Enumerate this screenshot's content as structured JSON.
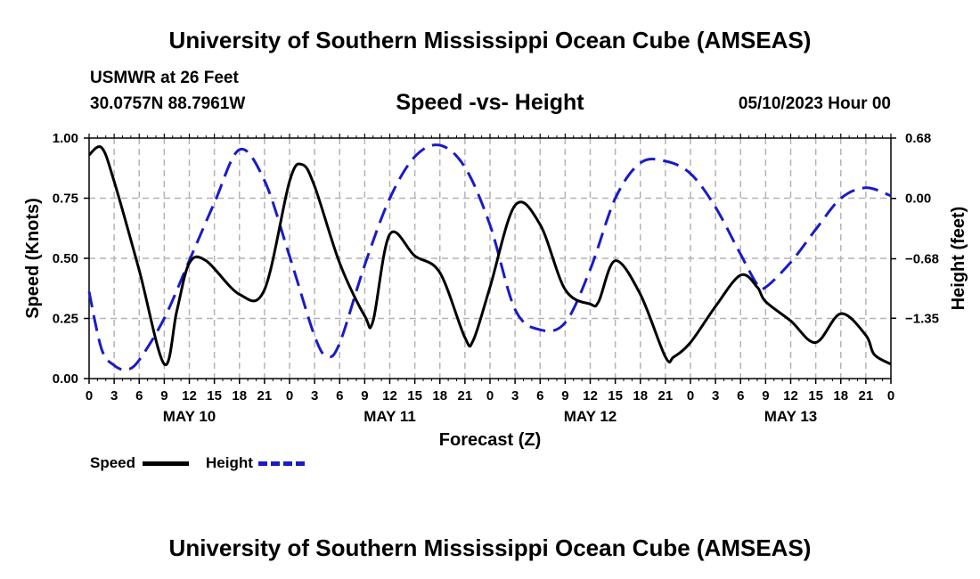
{
  "header": {
    "title": "University of Southern Mississippi Ocean Cube (AMSEAS)",
    "station": "USMWR at 26 Feet",
    "coordinates": "30.0757N  88.7961W",
    "subtitle": "Speed -vs- Height",
    "date_hour": "05/10/2023 Hour 00"
  },
  "footer": {
    "title": "University of Southern Mississippi Ocean Cube (AMSEAS)"
  },
  "legend": {
    "speed_label": "Speed",
    "height_label": "Height"
  },
  "colors": {
    "speed": "#000000",
    "height": "#1a1ac8",
    "grid": "#b4b4b4"
  },
  "chart_data": {
    "type": "line",
    "title": "Speed -vs- Height",
    "xlabel": "Forecast (Z)",
    "ylabel": "Speed (Knots)",
    "y2label": "Height (feet)",
    "x_unit": "hours from 05/10/2023 00Z",
    "xlim": [
      0,
      96
    ],
    "ylim": [
      0,
      1.0
    ],
    "y2lim": [
      -2.03,
      0.68
    ],
    "grid": true,
    "legend_position": "bottom-left",
    "x_ticks": [
      0,
      3,
      6,
      9,
      12,
      15,
      18,
      21,
      24,
      27,
      30,
      33,
      36,
      39,
      42,
      45,
      48,
      51,
      54,
      57,
      60,
      63,
      66,
      69,
      72,
      75,
      78,
      81,
      84,
      87,
      90,
      93,
      96
    ],
    "x_tick_labels": [
      "0",
      "3",
      "6",
      "9",
      "12",
      "15",
      "18",
      "21",
      "0",
      "3",
      "6",
      "9",
      "12",
      "15",
      "18",
      "21",
      "0",
      "3",
      "6",
      "9",
      "12",
      "15",
      "18",
      "21",
      "0",
      "3",
      "6",
      "9",
      "12",
      "15",
      "18",
      "21",
      "0"
    ],
    "day_labels": [
      {
        "x": 12,
        "label": "MAY 10"
      },
      {
        "x": 36,
        "label": "MAY 11"
      },
      {
        "x": 60,
        "label": "MAY 12"
      },
      {
        "x": 84,
        "label": "MAY 13"
      }
    ],
    "y_ticks": [
      0,
      0.25,
      0.5,
      0.75,
      1.0
    ],
    "y_tick_labels": [
      "0.00",
      "0.25",
      "0.50",
      "0.75",
      "1.00"
    ],
    "y2_ticks": [
      0.68,
      0.0,
      -0.68,
      -1.35
    ],
    "y2_tick_labels": [
      "0.68",
      "0.00",
      "−0.68",
      "−1.35"
    ],
    "series": [
      {
        "name": "Speed",
        "axis": "left",
        "style": "solid",
        "x": [
          0,
          1.5,
          3,
          6,
          9,
          10.5,
          12,
          14,
          18,
          21,
          24,
          25.5,
          27,
          30,
          33,
          34,
          36,
          39,
          42,
          45,
          46,
          48,
          51,
          54,
          57,
          60,
          61,
          63,
          66,
          69,
          70,
          72,
          75,
          78,
          80,
          81,
          84,
          87,
          90,
          93,
          94,
          96
        ],
        "y": [
          0.93,
          0.96,
          0.82,
          0.45,
          0.06,
          0.28,
          0.48,
          0.49,
          0.35,
          0.37,
          0.82,
          0.89,
          0.8,
          0.48,
          0.26,
          0.24,
          0.6,
          0.51,
          0.44,
          0.17,
          0.16,
          0.38,
          0.72,
          0.64,
          0.37,
          0.31,
          0.32,
          0.49,
          0.35,
          0.09,
          0.09,
          0.15,
          0.3,
          0.43,
          0.38,
          0.32,
          0.24,
          0.15,
          0.27,
          0.18,
          0.1,
          0.06
        ]
      },
      {
        "name": "Height",
        "axis": "right",
        "style": "dashed",
        "x": [
          0,
          1.5,
          3,
          4.5,
          6,
          9,
          12,
          15,
          18,
          21,
          24,
          27,
          28.5,
          30,
          33,
          36,
          39,
          42,
          45,
          48,
          51,
          54,
          57,
          60,
          63,
          66,
          69,
          72,
          75,
          78,
          80,
          81,
          84,
          87,
          90,
          93,
          96
        ],
        "y": [
          -1.05,
          -1.7,
          -1.88,
          -1.93,
          -1.82,
          -1.35,
          -0.7,
          -0.05,
          0.55,
          0.2,
          -0.65,
          -1.55,
          -1.78,
          -1.63,
          -0.75,
          0.0,
          0.47,
          0.6,
          0.35,
          -0.3,
          -1.25,
          -1.48,
          -1.4,
          -0.8,
          0.0,
          0.4,
          0.42,
          0.28,
          -0.1,
          -0.63,
          -0.97,
          -1.0,
          -0.72,
          -0.35,
          0.0,
          0.12,
          0.03
        ]
      }
    ]
  }
}
